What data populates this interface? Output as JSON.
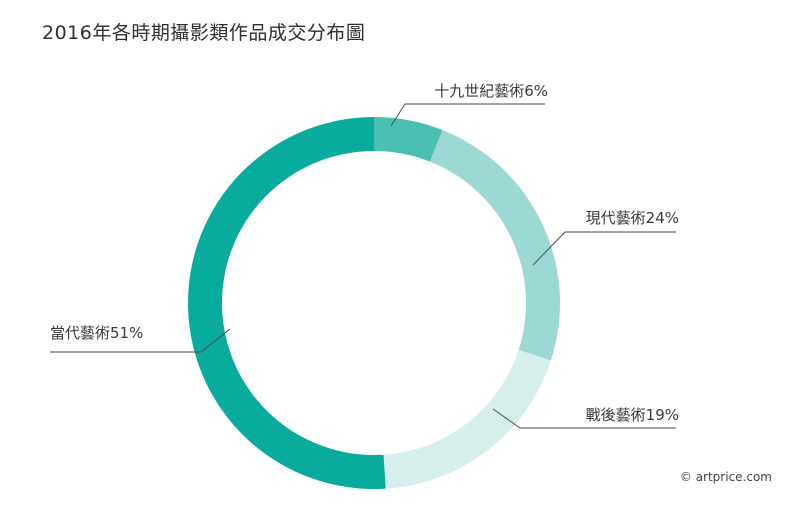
{
  "title": "2016年各時期攝影類作品成交分布圖",
  "credit": "© artprice.com",
  "chart_data": {
    "type": "pie",
    "style": "donut",
    "title": "2016年各時期攝影類作品成交分布圖",
    "categories": [
      "十九世紀藝術",
      "現代藝術",
      "戰後藝術",
      "當代藝術"
    ],
    "values": [
      6,
      24,
      19,
      51
    ],
    "unit": "%",
    "labels": [
      "十九世紀藝術6%",
      "現代藝術24%",
      "戰後藝術19%",
      "當代藝術51%"
    ],
    "colors": [
      "#4bbfb4",
      "#9dd9d4",
      "#d6efed",
      "#09ab9c"
    ],
    "leader_line_color": "#4a4a4a"
  }
}
